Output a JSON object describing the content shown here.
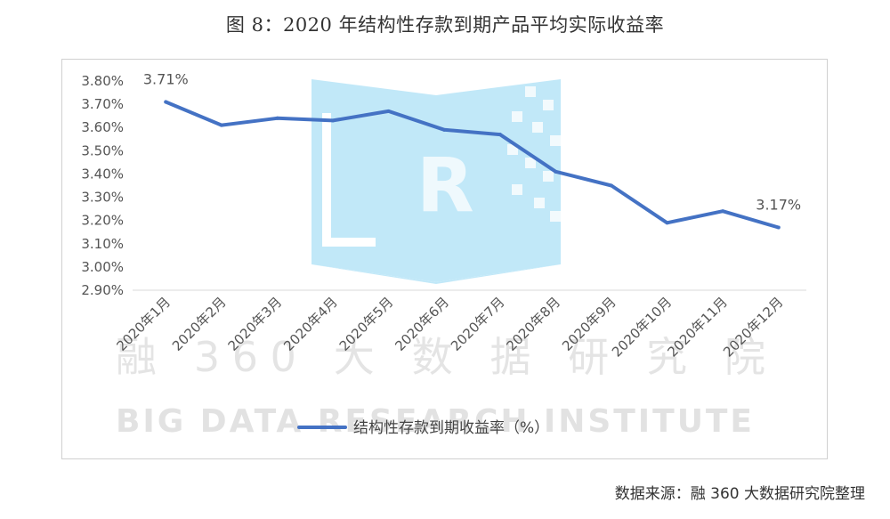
{
  "title": "图 8：2020 年结构性存款到期产品平均实际收益率",
  "source": "数据来源：融 360 大数据研究院整理",
  "watermark": {
    "chinese": "融 360 大 数 据 研 究 院",
    "english": "BIG DATA RESEARCH INSTITUTE",
    "logo_letter": "R"
  },
  "chart_data": {
    "type": "line",
    "categories": [
      "2020年1月",
      "2020年2月",
      "2020年3月",
      "2020年4月",
      "2020年5月",
      "2020年6月",
      "2020年7月",
      "2020年8月",
      "2020年9月",
      "2020年10月",
      "2020年11月",
      "2020年12月"
    ],
    "series": [
      {
        "name": "结构性存款到期收益率（%）",
        "values": [
          3.71,
          3.61,
          3.64,
          3.63,
          3.67,
          3.59,
          3.57,
          3.41,
          3.35,
          3.19,
          3.24,
          3.17
        ],
        "color": "#4472C4"
      }
    ],
    "data_labels": [
      {
        "index": 0,
        "text": "3.71%"
      },
      {
        "index": 11,
        "text": "3.17%"
      }
    ],
    "ylim": [
      2.9,
      3.8
    ],
    "yticks": [
      "2.90%",
      "3.00%",
      "3.10%",
      "3.20%",
      "3.30%",
      "3.40%",
      "3.50%",
      "3.60%",
      "3.70%",
      "3.80%"
    ],
    "xlabel": "",
    "ylabel": "",
    "grid": false,
    "legend_position": "bottom"
  }
}
